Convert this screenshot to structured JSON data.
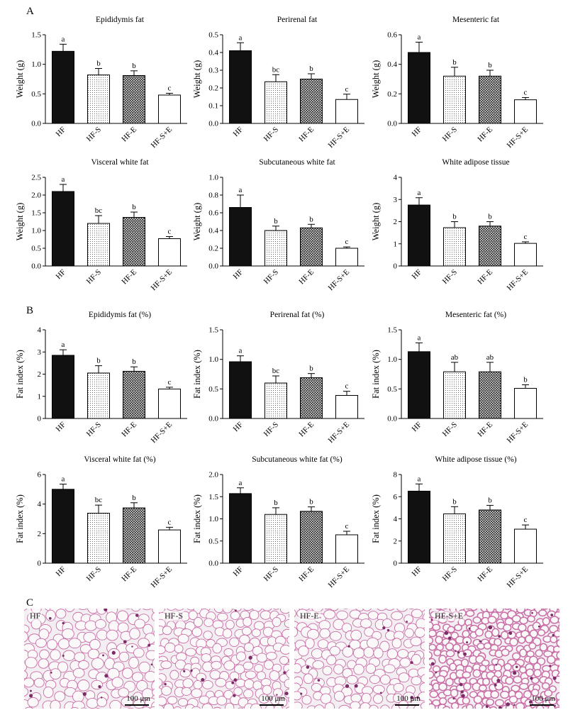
{
  "panel_labels": {
    "a": "A",
    "b": "B",
    "c": "C"
  },
  "chart_data": [
    {
      "type": "bar",
      "title": "Epididymis fat",
      "ylabel": "Weight (g)",
      "categories": [
        "HF",
        "HF-S",
        "HF-E",
        "HF-S+E"
      ],
      "values": [
        1.22,
        0.82,
        0.81,
        0.48
      ],
      "errors": [
        0.12,
        0.11,
        0.08,
        0.03
      ],
      "letters": [
        "a",
        "b",
        "b",
        "c"
      ],
      "ylim": [
        0,
        1.5
      ],
      "yticks": [
        0.0,
        0.5,
        1.0,
        1.5
      ],
      "ytick_labels": [
        "0.0",
        "0.5",
        "1.0",
        "1.5"
      ]
    },
    {
      "type": "bar",
      "title": "Perirenal fat",
      "ylabel": "Weight (g)",
      "categories": [
        "HF",
        "HF-S",
        "HF-E",
        "HF-S+E"
      ],
      "values": [
        0.41,
        0.235,
        0.25,
        0.135
      ],
      "errors": [
        0.045,
        0.04,
        0.03,
        0.03
      ],
      "letters": [
        "a",
        "bc",
        "b",
        "c"
      ],
      "ylim": [
        0,
        0.5
      ],
      "yticks": [
        0.0,
        0.1,
        0.2,
        0.3,
        0.4,
        0.5
      ],
      "ytick_labels": [
        "0.0",
        "0.1",
        "0.2",
        "0.3",
        "0.4",
        "0.5"
      ]
    },
    {
      "type": "bar",
      "title": "Mesenteric fat",
      "ylabel": "Weight (g)",
      "categories": [
        "HF",
        "HF-S",
        "HF-E",
        "HF-S+E"
      ],
      "values": [
        0.48,
        0.32,
        0.32,
        0.16
      ],
      "errors": [
        0.07,
        0.06,
        0.04,
        0.015
      ],
      "letters": [
        "a",
        "b",
        "b",
        "c"
      ],
      "ylim": [
        0,
        0.6
      ],
      "yticks": [
        0.0,
        0.2,
        0.4,
        0.6
      ],
      "ytick_labels": [
        "0.0",
        "0.2",
        "0.4",
        "0.6"
      ]
    },
    {
      "type": "bar",
      "title": "Visceral white fat",
      "ylabel": "Weight (g)",
      "categories": [
        "HF",
        "HF-S",
        "HF-E",
        "HF-S+E"
      ],
      "values": [
        2.1,
        1.2,
        1.37,
        0.77
      ],
      "errors": [
        0.2,
        0.22,
        0.15,
        0.06
      ],
      "letters": [
        "a",
        "bc",
        "b",
        "c"
      ],
      "ylim": [
        0,
        2.5
      ],
      "yticks": [
        0.0,
        0.5,
        1.0,
        1.5,
        2.0,
        2.5
      ],
      "ytick_labels": [
        "0.0",
        "0.5",
        "1.0",
        "1.5",
        "2.0",
        "2.5"
      ]
    },
    {
      "type": "bar",
      "title": "Subcutaneous white fat",
      "ylabel": "Weight (g)",
      "categories": [
        "HF",
        "HF-S",
        "HF-E",
        "HF-S+E"
      ],
      "values": [
        0.66,
        0.4,
        0.43,
        0.2
      ],
      "errors": [
        0.14,
        0.05,
        0.04,
        0.015
      ],
      "letters": [
        "a",
        "b",
        "b",
        "c"
      ],
      "ylim": [
        0,
        1.0
      ],
      "yticks": [
        0.0,
        0.2,
        0.4,
        0.6,
        0.8,
        1.0
      ],
      "ytick_labels": [
        "0.0",
        "0.2",
        "0.4",
        "0.6",
        "0.8",
        "1.0"
      ]
    },
    {
      "type": "bar",
      "title": "White adipose tissue",
      "ylabel": "Weight (g)",
      "categories": [
        "HF",
        "HF-S",
        "HF-E",
        "HF-S+E"
      ],
      "values": [
        2.75,
        1.73,
        1.8,
        1.02
      ],
      "errors": [
        0.33,
        0.27,
        0.2,
        0.07
      ],
      "letters": [
        "a",
        "b",
        "b",
        "c"
      ],
      "ylim": [
        0,
        4
      ],
      "yticks": [
        0,
        1,
        2,
        3,
        4
      ],
      "ytick_labels": [
        "0",
        "1",
        "2",
        "3",
        "4"
      ]
    },
    {
      "type": "bar",
      "title": "Epididymis fat (%)",
      "ylabel": "Fat index (%)",
      "categories": [
        "HF",
        "HF-S",
        "HF-E",
        "HF-S+E"
      ],
      "values": [
        2.85,
        2.05,
        2.13,
        1.33
      ],
      "errors": [
        0.25,
        0.33,
        0.2,
        0.08
      ],
      "letters": [
        "a",
        "b",
        "b",
        "c"
      ],
      "ylim": [
        0,
        4
      ],
      "yticks": [
        0,
        1,
        2,
        3,
        4
      ],
      "ytick_labels": [
        "0",
        "1",
        "2",
        "3",
        "4"
      ]
    },
    {
      "type": "bar",
      "title": "Perirenal fat (%)",
      "ylabel": "Fat index (%)",
      "categories": [
        "HF",
        "HF-S",
        "HF-E",
        "HF-S+E"
      ],
      "values": [
        0.96,
        0.6,
        0.69,
        0.39
      ],
      "errors": [
        0.1,
        0.12,
        0.07,
        0.07
      ],
      "letters": [
        "a",
        "bc",
        "b",
        "c"
      ],
      "ylim": [
        0,
        1.5
      ],
      "yticks": [
        0.0,
        0.5,
        1.0,
        1.5
      ],
      "ytick_labels": [
        "0.0",
        "0.5",
        "1.0",
        "1.5"
      ]
    },
    {
      "type": "bar",
      "title": "Mesenteric fat (%)",
      "ylabel": "Fat index (%)",
      "categories": [
        "HF",
        "HF-S",
        "HF-E",
        "HF-S+E"
      ],
      "values": [
        1.13,
        0.79,
        0.79,
        0.51
      ],
      "errors": [
        0.15,
        0.16,
        0.16,
        0.06
      ],
      "letters": [
        "a",
        "ab",
        "ab",
        "b"
      ],
      "ylim": [
        0,
        1.5
      ],
      "yticks": [
        0.0,
        0.5,
        1.0,
        1.5
      ],
      "ytick_labels": [
        "0.0",
        "0.5",
        "1.0",
        "1.5"
      ]
    },
    {
      "type": "bar",
      "title": "Visceral white fat (%)",
      "ylabel": "Fat index (%)",
      "categories": [
        "HF",
        "HF-S",
        "HF-E",
        "HF-S+E"
      ],
      "values": [
        5.0,
        3.38,
        3.74,
        2.25
      ],
      "errors": [
        0.35,
        0.55,
        0.35,
        0.18
      ],
      "letters": [
        "a",
        "bc",
        "b",
        "c"
      ],
      "ylim": [
        0,
        6
      ],
      "yticks": [
        0,
        2,
        4,
        6
      ],
      "ytick_labels": [
        "0",
        "2",
        "4",
        "6"
      ]
    },
    {
      "type": "bar",
      "title": "Subcutaneous white fat (%)",
      "ylabel": "Fat index (%)",
      "categories": [
        "HF",
        "HF-S",
        "HF-E",
        "HF-S+E"
      ],
      "values": [
        1.57,
        1.1,
        1.17,
        0.64
      ],
      "errors": [
        0.13,
        0.15,
        0.1,
        0.08
      ],
      "letters": [
        "a",
        "b",
        "b",
        "c"
      ],
      "ylim": [
        0,
        2.0
      ],
      "yticks": [
        0.0,
        0.5,
        1.0,
        1.5,
        2.0
      ],
      "ytick_labels": [
        "0.0",
        "0.5",
        "1.0",
        "1.5",
        "2.0"
      ]
    },
    {
      "type": "bar",
      "title": "White adipose tissue (%)",
      "ylabel": "Fat index (%)",
      "categories": [
        "HF",
        "HF-S",
        "HF-E",
        "HF-S+E"
      ],
      "values": [
        6.5,
        4.45,
        4.8,
        3.07
      ],
      "errors": [
        0.65,
        0.65,
        0.42,
        0.38
      ],
      "letters": [
        "a",
        "b",
        "b",
        "c"
      ],
      "ylim": [
        0,
        8
      ],
      "yticks": [
        0,
        2,
        4,
        6,
        8
      ],
      "ytick_labels": [
        "0",
        "2",
        "4",
        "6",
        "8"
      ]
    }
  ],
  "bar_fills": [
    "black",
    "dots",
    "crosshatch",
    "white"
  ],
  "histology": [
    {
      "label": "HF",
      "scale": "100 μm"
    },
    {
      "label": "HF-S",
      "scale": "100 μm"
    },
    {
      "label": "HF-E",
      "scale": "100 μm"
    },
    {
      "label": "HF-S+E",
      "scale": "100 μm"
    }
  ],
  "colors": {
    "stain_cytoplasm": "#c96fa6",
    "stain_background": "#f3eef2",
    "nuclei": "#7a2d67"
  }
}
